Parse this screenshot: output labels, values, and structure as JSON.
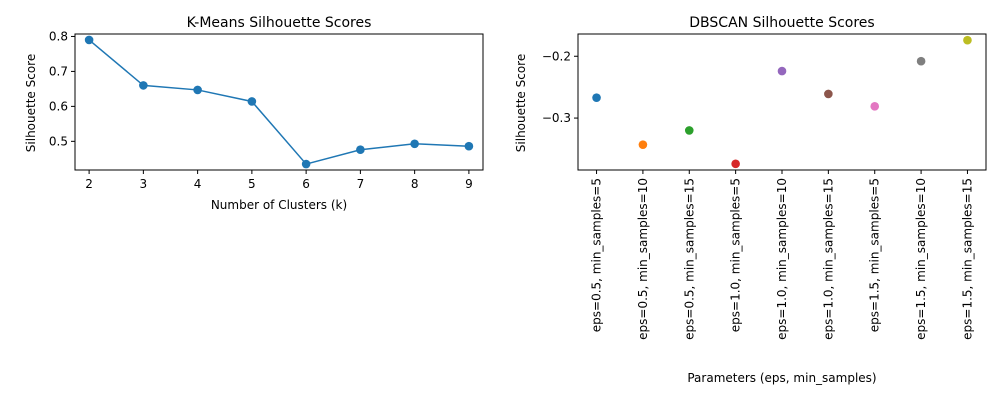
{
  "chart_data": [
    {
      "type": "line",
      "title": "K-Means Silhouette Scores",
      "xlabel": "Number of Clusters (k)",
      "ylabel": "Silhouette Score",
      "x": [
        2,
        3,
        4,
        5,
        6,
        7,
        8,
        9
      ],
      "y": [
        0.79,
        0.66,
        0.647,
        0.614,
        0.435,
        0.476,
        0.493,
        0.486
      ],
      "xlim": [
        1.74,
        9.26
      ],
      "ylim": [
        0.418,
        0.807
      ],
      "xticks": [
        "2",
        "3",
        "4",
        "5",
        "6",
        "7",
        "8",
        "9"
      ],
      "yticks": [
        0.5,
        0.6,
        0.7,
        0.8
      ],
      "ytick_labels": [
        "0.5",
        "0.6",
        "0.7",
        "0.8"
      ],
      "color": "#1f77b4",
      "markers": true,
      "grid": false
    },
    {
      "type": "scatter",
      "title": "DBSCAN Silhouette Scores",
      "xlabel": "Parameters (eps, min_samples)",
      "ylabel": "Silhouette Score",
      "categories": [
        "eps=0.5, min_samples=5",
        "eps=0.5, min_samples=10",
        "eps=0.5, min_samples=15",
        "eps=1.0, min_samples=5",
        "eps=1.0, min_samples=10",
        "eps=1.0, min_samples=15",
        "eps=1.5, min_samples=5",
        "eps=1.5, min_samples=10",
        "eps=1.5, min_samples=15"
      ],
      "values": [
        -0.267,
        -0.343,
        -0.32,
        -0.374,
        -0.224,
        -0.261,
        -0.281,
        -0.208,
        -0.174
      ],
      "colors": [
        "#1f77b4",
        "#ff7f0e",
        "#2ca02c",
        "#d62728",
        "#9467bd",
        "#8c564b",
        "#e377c2",
        "#7f7f7f",
        "#bcbd22"
      ],
      "xlim": [
        -0.4,
        8.4
      ],
      "ylim": [
        -0.384,
        -0.164
      ],
      "yticks": [
        -0.3,
        -0.2
      ],
      "ytick_labels": [
        "−0.3",
        "−0.2"
      ],
      "grid": false
    }
  ]
}
